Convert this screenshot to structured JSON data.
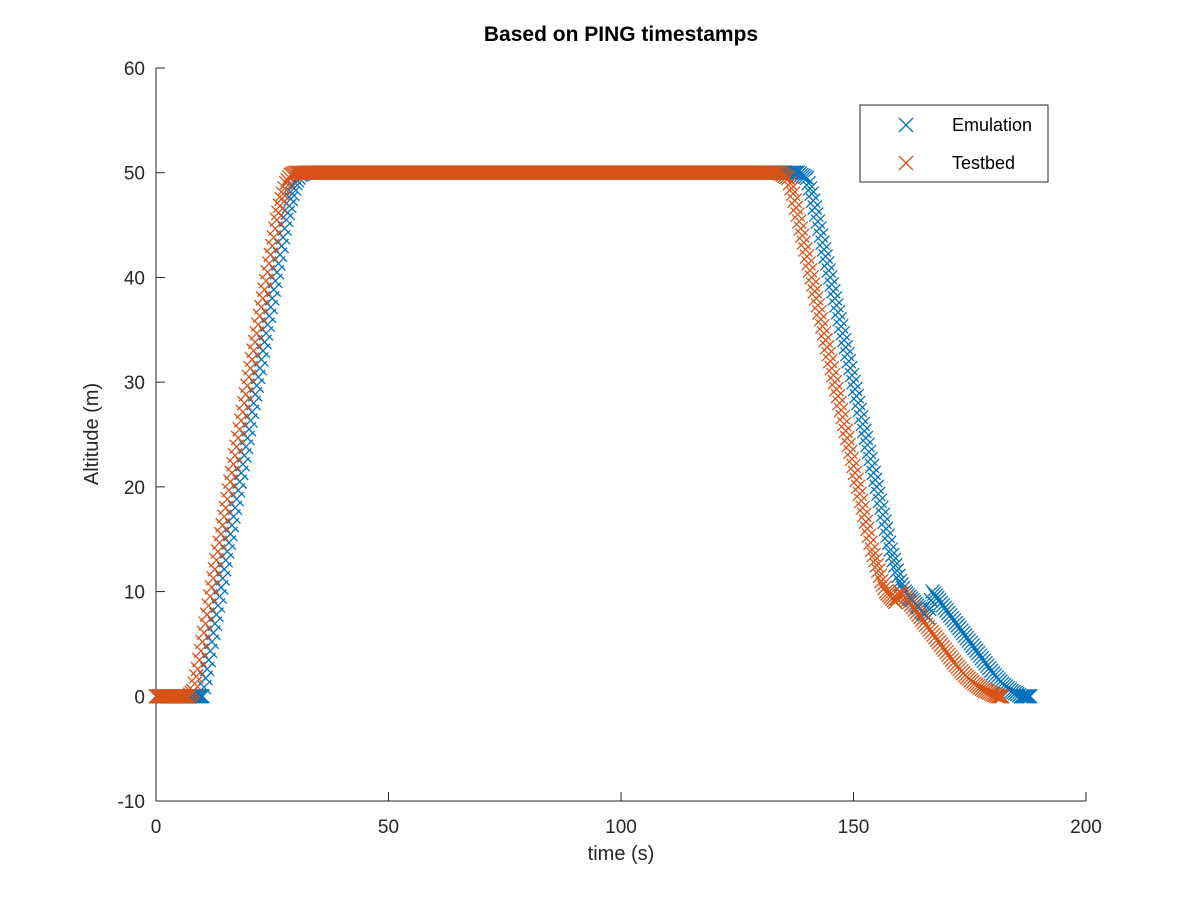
{
  "chart_data": {
    "type": "scatter",
    "title": "Based on PING timestamps",
    "xlabel": "time (s)",
    "ylabel": "Altitude (m)",
    "xlim": [
      0,
      200
    ],
    "ylim": [
      -10,
      60
    ],
    "xticks": [
      0,
      50,
      100,
      150,
      200
    ],
    "yticks": [
      -10,
      0,
      10,
      20,
      30,
      40,
      50,
      60
    ],
    "grid": false,
    "legend_position": "top-right",
    "marker": "x",
    "series": [
      {
        "name": "Emulation",
        "color": "#0072BD",
        "points": [
          [
            0,
            0
          ],
          [
            1,
            0
          ],
          [
            2,
            0
          ],
          [
            3,
            0
          ],
          [
            4,
            0
          ],
          [
            5,
            0
          ],
          [
            6,
            0
          ],
          [
            7,
            0
          ],
          [
            8,
            0
          ],
          [
            9,
            0
          ],
          [
            10,
            0
          ],
          [
            11,
            2.6
          ],
          [
            12,
            5.2
          ],
          [
            13,
            7.8
          ],
          [
            14,
            10.4
          ],
          [
            15,
            13
          ],
          [
            16,
            15.5
          ],
          [
            17,
            18
          ],
          [
            18,
            20.5
          ],
          [
            19,
            23
          ],
          [
            20,
            25.5
          ],
          [
            21,
            28
          ],
          [
            22,
            30.5
          ],
          [
            23,
            33
          ],
          [
            24,
            35.5
          ],
          [
            25,
            38
          ],
          [
            26,
            40.5
          ],
          [
            27,
            43
          ],
          [
            28,
            45.5
          ],
          [
            29,
            47.5
          ],
          [
            30,
            49
          ],
          [
            31,
            49.8
          ],
          [
            32,
            50
          ],
          [
            35,
            50
          ],
          [
            40,
            50
          ],
          [
            45,
            50
          ],
          [
            50,
            50
          ],
          [
            55,
            50
          ],
          [
            60,
            50
          ],
          [
            65,
            50
          ],
          [
            70,
            50
          ],
          [
            75,
            50
          ],
          [
            80,
            50
          ],
          [
            85,
            50
          ],
          [
            90,
            50
          ],
          [
            95,
            50
          ],
          [
            100,
            50
          ],
          [
            105,
            50
          ],
          [
            110,
            50
          ],
          [
            115,
            50
          ],
          [
            120,
            50
          ],
          [
            125,
            50
          ],
          [
            130,
            50
          ],
          [
            135,
            50
          ],
          [
            138,
            50
          ],
          [
            140,
            49.5
          ],
          [
            141,
            48
          ],
          [
            142,
            46
          ],
          [
            143,
            44
          ],
          [
            144,
            42
          ],
          [
            145,
            40
          ],
          [
            146,
            38
          ],
          [
            147,
            36
          ],
          [
            148,
            34
          ],
          [
            149,
            32
          ],
          [
            150,
            30
          ],
          [
            151,
            28
          ],
          [
            152,
            26
          ],
          [
            153,
            24
          ],
          [
            154,
            22
          ],
          [
            155,
            20
          ],
          [
            156,
            18
          ],
          [
            157,
            16
          ],
          [
            158,
            14
          ],
          [
            159,
            12.5
          ],
          [
            160,
            11
          ],
          [
            161,
            10
          ],
          [
            162,
            9.5
          ],
          [
            163,
            9
          ],
          [
            164,
            8.5
          ],
          [
            165,
            8
          ],
          [
            166,
            7.5
          ],
          [
            167,
            10
          ],
          [
            168,
            9.4
          ],
          [
            170,
            8.2
          ],
          [
            172,
            7
          ],
          [
            174,
            5.8
          ],
          [
            176,
            4.6
          ],
          [
            178,
            3.4
          ],
          [
            180,
            2.2
          ],
          [
            182,
            1.2
          ],
          [
            184,
            0.5
          ],
          [
            186,
            0
          ],
          [
            187,
            0
          ],
          [
            188,
            0
          ]
        ]
      },
      {
        "name": "Testbed",
        "color": "#D95319",
        "points": [
          [
            0,
            0
          ],
          [
            1,
            0
          ],
          [
            2,
            0
          ],
          [
            3,
            0
          ],
          [
            4,
            0
          ],
          [
            5,
            0
          ],
          [
            6,
            0
          ],
          [
            7,
            0
          ],
          [
            8,
            0.5
          ],
          [
            9,
            2.6
          ],
          [
            10,
            5.2
          ],
          [
            11,
            7.8
          ],
          [
            12,
            10.4
          ],
          [
            13,
            13
          ],
          [
            14,
            15.5
          ],
          [
            15,
            18
          ],
          [
            16,
            20.5
          ],
          [
            17,
            23
          ],
          [
            18,
            25.5
          ],
          [
            19,
            28
          ],
          [
            20,
            30.5
          ],
          [
            21,
            33
          ],
          [
            22,
            35.5
          ],
          [
            23,
            38
          ],
          [
            24,
            40.5
          ],
          [
            25,
            43
          ],
          [
            26,
            45.5
          ],
          [
            27,
            47.5
          ],
          [
            28,
            49
          ],
          [
            29,
            49.8
          ],
          [
            30,
            50
          ],
          [
            35,
            50
          ],
          [
            40,
            50
          ],
          [
            45,
            50
          ],
          [
            50,
            50
          ],
          [
            55,
            50
          ],
          [
            60,
            50
          ],
          [
            65,
            50
          ],
          [
            70,
            50
          ],
          [
            75,
            50
          ],
          [
            80,
            50
          ],
          [
            85,
            50
          ],
          [
            90,
            50
          ],
          [
            95,
            50
          ],
          [
            100,
            50
          ],
          [
            105,
            50
          ],
          [
            110,
            50
          ],
          [
            115,
            50
          ],
          [
            120,
            50
          ],
          [
            125,
            50
          ],
          [
            130,
            50
          ],
          [
            134,
            50
          ],
          [
            136,
            49.5
          ],
          [
            137,
            48
          ],
          [
            138,
            46
          ],
          [
            139,
            44
          ],
          [
            140,
            42
          ],
          [
            141,
            40
          ],
          [
            142,
            38
          ],
          [
            143,
            36
          ],
          [
            144,
            34
          ],
          [
            145,
            32
          ],
          [
            146,
            30
          ],
          [
            147,
            28
          ],
          [
            148,
            26
          ],
          [
            149,
            24
          ],
          [
            150,
            22
          ],
          [
            151,
            20
          ],
          [
            152,
            18
          ],
          [
            153,
            16
          ],
          [
            154,
            14
          ],
          [
            155,
            12.5
          ],
          [
            156,
            11
          ],
          [
            157,
            10
          ],
          [
            158,
            9.5
          ],
          [
            159,
            9
          ],
          [
            160,
            10
          ],
          [
            162,
            9
          ],
          [
            164,
            7.8
          ],
          [
            166,
            6.6
          ],
          [
            168,
            5.4
          ],
          [
            170,
            4.2
          ],
          [
            172,
            3
          ],
          [
            174,
            2
          ],
          [
            176,
            1.2
          ],
          [
            178,
            0.6
          ],
          [
            180,
            0.2
          ],
          [
            181,
            0
          ],
          [
            182,
            0
          ]
        ]
      }
    ]
  }
}
